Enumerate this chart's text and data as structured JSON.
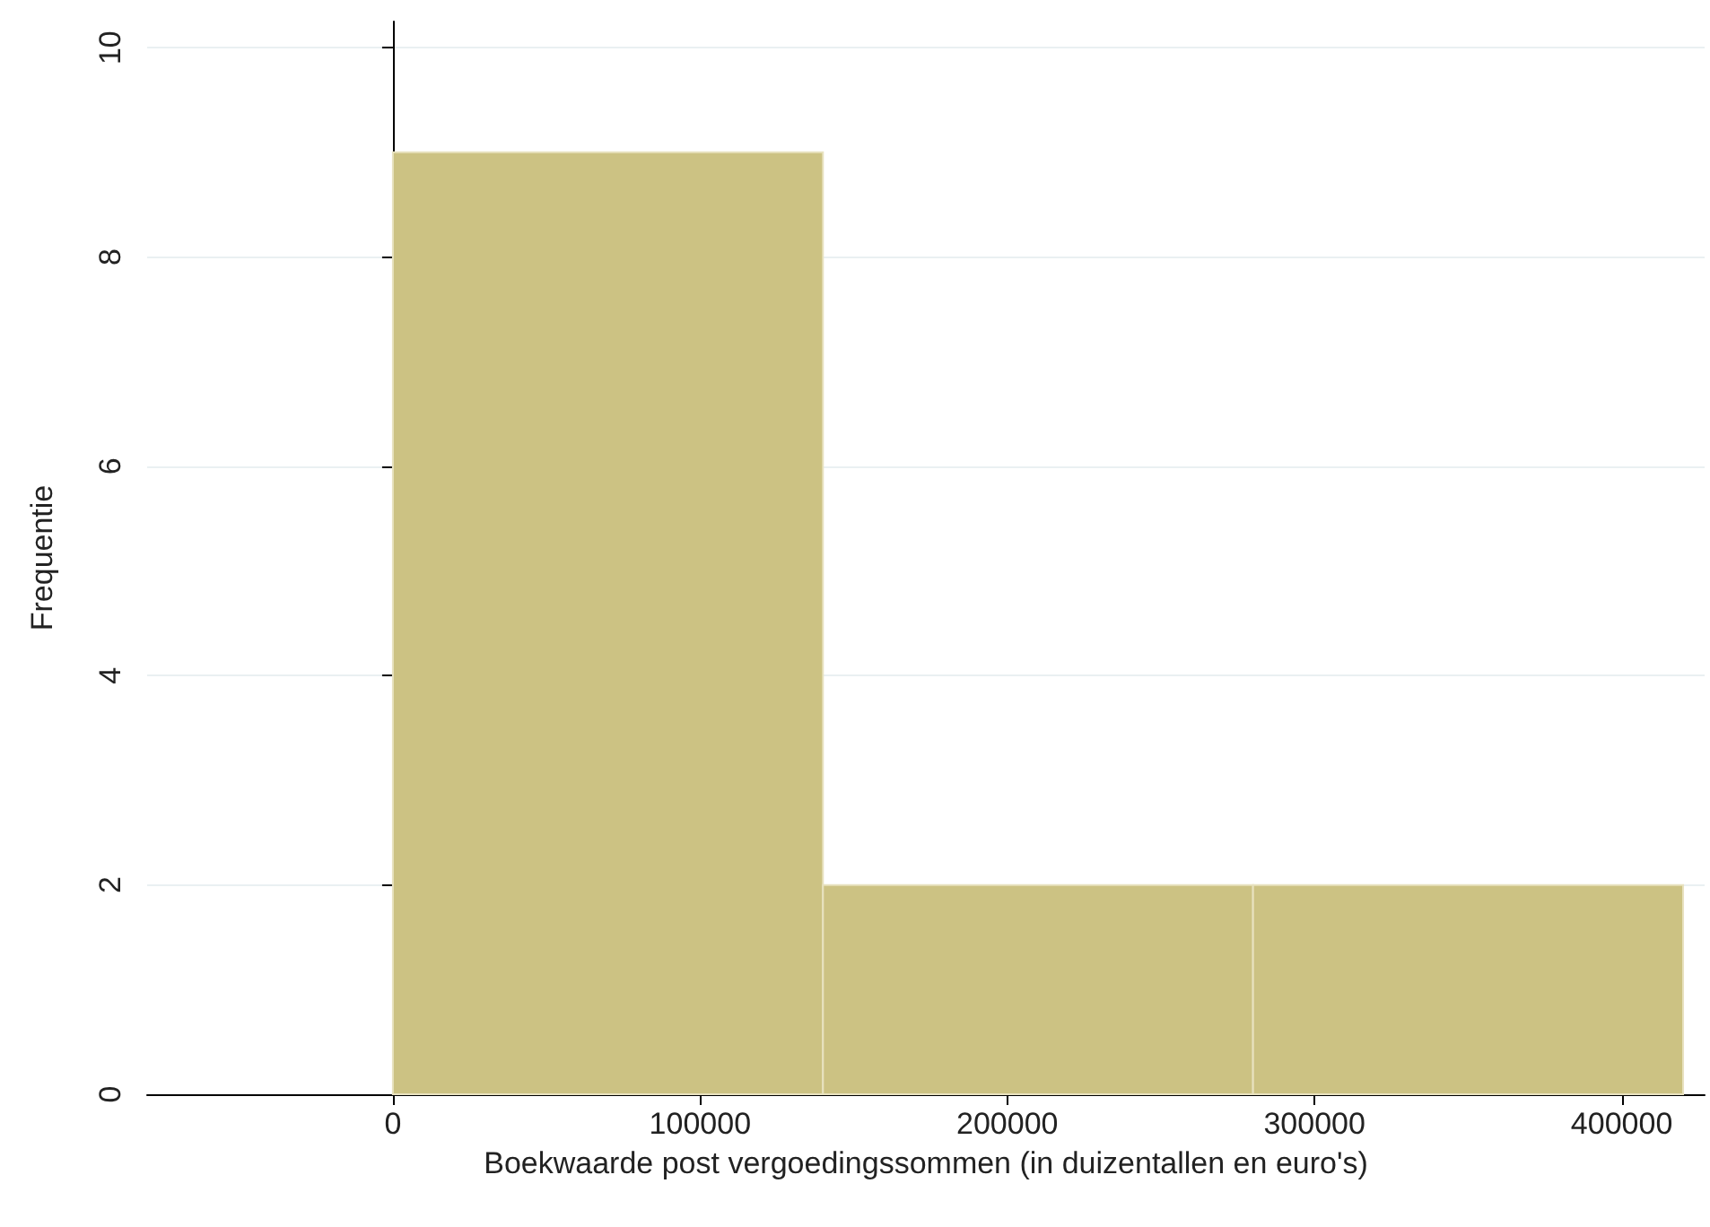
{
  "chart_data": {
    "type": "histogram",
    "xlabel": "Boekwaarde post vergoedingssommen (in duizentallen en euro's)",
    "ylabel": "Frequentie",
    "bins": [
      0,
      140000,
      280000,
      420000
    ],
    "values": [
      9,
      2,
      2
    ],
    "color": "#ccc283",
    "xlim": [
      -80000,
      427000
    ],
    "xticks": [
      0,
      100000,
      200000,
      300000,
      400000
    ],
    "ylim": [
      0,
      10.25
    ],
    "yticks": [
      0,
      2,
      4,
      6,
      8,
      10
    ],
    "grid": "y"
  }
}
